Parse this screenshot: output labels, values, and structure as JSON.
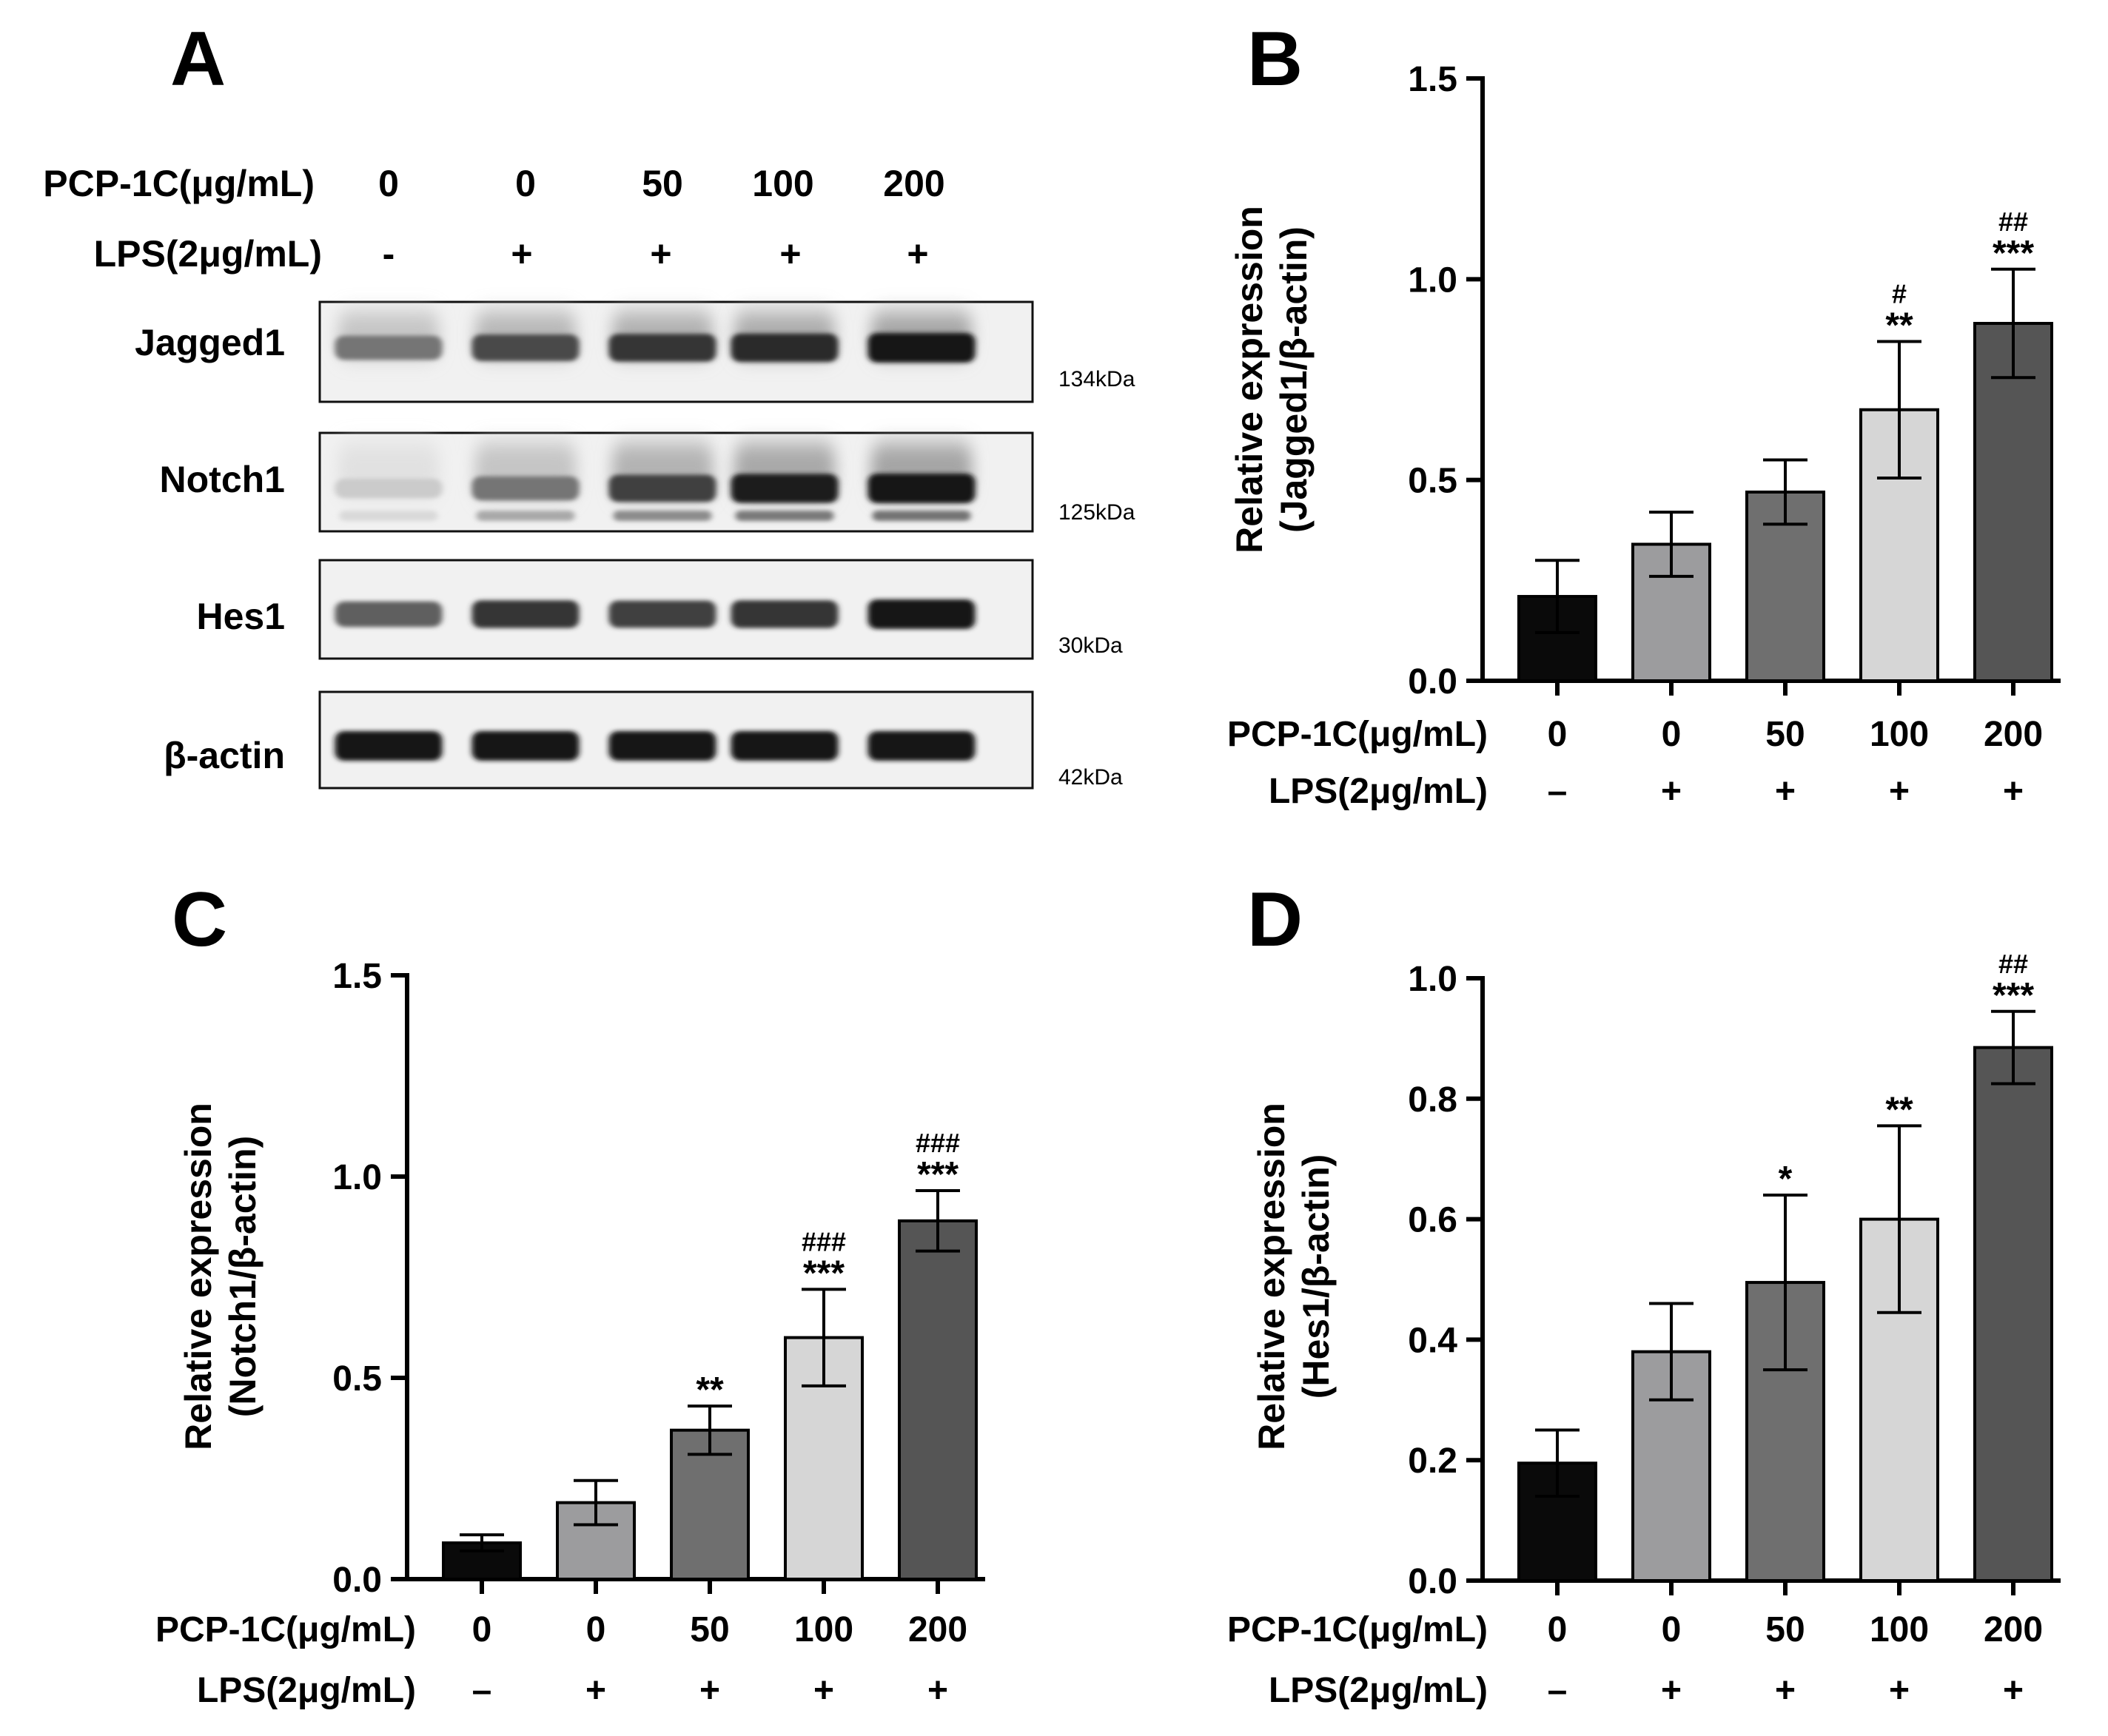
{
  "blot": {
    "letter": "A",
    "treatment_label": "PCP-1C(μg/mL)",
    "treatment_values": [
      "0",
      "0",
      "50",
      "100",
      "200"
    ],
    "lps_label": "LPS(2μg/mL)",
    "lps_values": [
      "-",
      "+",
      "+",
      "+",
      "+"
    ],
    "proteins": [
      {
        "name": "Jagged1",
        "size": "134kDa",
        "band_intensity": [
          0.55,
          0.75,
          0.85,
          0.9,
          1.0
        ],
        "double_band": false
      },
      {
        "name": "Notch1",
        "size": "125kDa",
        "band_intensity": [
          0.15,
          0.55,
          0.8,
          0.95,
          1.0
        ],
        "double_band": true
      },
      {
        "name": "Hes1",
        "size": "30kDa",
        "band_intensity": [
          0.65,
          0.85,
          0.8,
          0.85,
          1.0
        ],
        "double_band": false
      },
      {
        "name": "β-actin",
        "size": "42kDa",
        "band_intensity": [
          1.0,
          1.0,
          1.0,
          1.0,
          1.0
        ],
        "double_band": false
      }
    ]
  },
  "chart_data": [
    {
      "panel": "B",
      "type": "bar",
      "ylabel_line1": "Relative expression",
      "ylabel_line2": "(Jagged1/β-actin)",
      "ylim": [
        0,
        1.5
      ],
      "yticks": [
        "0.0",
        "0.5",
        "1.0",
        "1.5"
      ],
      "treatment_label": "PCP-1C(μg/mL)",
      "categories": [
        "0",
        "0",
        "50",
        "100",
        "200"
      ],
      "lps_label": "LPS(2μg/mL)",
      "lps_values": [
        "–",
        "+",
        "+",
        "+",
        "+"
      ],
      "values": [
        0.21,
        0.34,
        0.47,
        0.675,
        0.89
      ],
      "errors": [
        0.09,
        0.08,
        0.08,
        0.17,
        0.135
      ],
      "bar_colors": [
        "#0a0a0a",
        "#9c9c9e",
        "#6f6f6f",
        "#d6d6d6",
        "#555555"
      ],
      "sig_star": [
        "",
        "",
        "",
        "**",
        "***"
      ],
      "sig_hash": [
        "",
        "",
        "",
        "#",
        "##"
      ]
    },
    {
      "panel": "C",
      "type": "bar",
      "ylabel_line1": "Relative expression",
      "ylabel_line2": "(Notch1/β-actin)",
      "ylim": [
        0,
        1.5
      ],
      "yticks": [
        "0.0",
        "0.5",
        "1.0",
        "1.5"
      ],
      "treatment_label": "PCP-1C(μg/mL)",
      "categories": [
        "0",
        "0",
        "50",
        "100",
        "200"
      ],
      "lps_label": "LPS(2μg/mL)",
      "lps_values": [
        "–",
        "+",
        "+",
        "+",
        "+"
      ],
      "values": [
        0.09,
        0.19,
        0.37,
        0.6,
        0.89
      ],
      "errors": [
        0.02,
        0.055,
        0.06,
        0.12,
        0.075
      ],
      "bar_colors": [
        "#0a0a0a",
        "#9c9c9e",
        "#6f6f6f",
        "#d6d6d6",
        "#555555"
      ],
      "sig_star": [
        "",
        "",
        "**",
        "***",
        "***"
      ],
      "sig_hash": [
        "",
        "",
        "",
        "###",
        "###"
      ]
    },
    {
      "panel": "D",
      "type": "bar",
      "ylabel_line1": "Relative expression",
      "ylabel_line2": "(Hes1/β-actin)",
      "ylim": [
        0,
        1.0
      ],
      "yticks": [
        "0.0",
        "0.2",
        "0.4",
        "0.6",
        "0.8",
        "1.0"
      ],
      "treatment_label": "PCP-1C(μg/mL)",
      "categories": [
        "0",
        "0",
        "50",
        "100",
        "200"
      ],
      "lps_label": "LPS(2μg/mL)",
      "lps_values": [
        "–",
        "+",
        "+",
        "+",
        "+"
      ],
      "values": [
        0.195,
        0.38,
        0.495,
        0.6,
        0.885
      ],
      "errors": [
        0.055,
        0.08,
        0.145,
        0.155,
        0.06
      ],
      "bar_colors": [
        "#0a0a0a",
        "#9c9c9e",
        "#6f6f6f",
        "#d6d6d6",
        "#555555"
      ],
      "sig_star": [
        "",
        "",
        "*",
        "**",
        "***"
      ],
      "sig_hash": [
        "",
        "",
        "",
        "",
        "##"
      ]
    }
  ]
}
